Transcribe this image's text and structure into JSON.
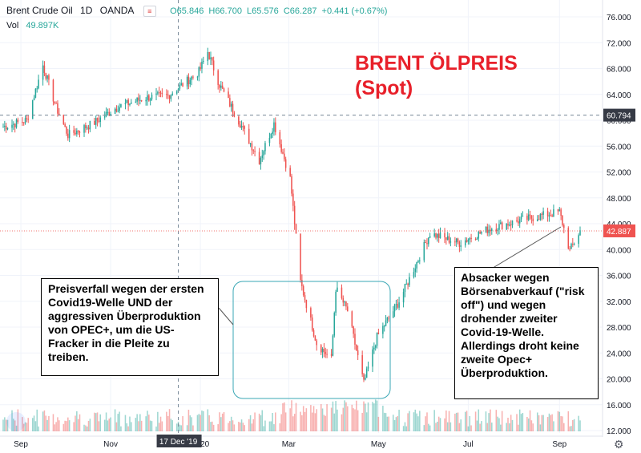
{
  "header": {
    "symbol": "Brent Crude Oil",
    "interval": "1D",
    "broker": "OANDA",
    "open": "O65.846",
    "high": "H66.700",
    "low": "L65.576",
    "close": "C66.287",
    "change": "+0.441 (+0.67%)",
    "vol_label": "Vol",
    "vol_value": "49.897K"
  },
  "annotation_title": [
    "BRENT ÖLPREIS",
    "(Spot)"
  ],
  "note_left": "Preisverfall wegen der ersten Covid19-Welle UND der aggressiven Überproduktion von OPEC+, um die US-Fracker in die Pleite zu treiben.",
  "note_right": "Absacker wegen Börsenabverkauf (\"risk off\") und wegen drohender zweiter Covid-19-Welle. Allerdings droht keine zweite Opec+ Überproduktion.",
  "colors": {
    "up": "#26a69a",
    "down": "#ef5350",
    "title_red": "#e8202a",
    "box": "#3aa7b5"
  },
  "chart_data": {
    "type": "candlestick",
    "title": "",
    "xlabel": "",
    "ylabel": "",
    "ylim": [
      12,
      77
    ],
    "y_ticks": [
      "76.000",
      "72.000",
      "68.000",
      "64.000",
      "60.000",
      "56.000",
      "52.000",
      "48.000",
      "44.000",
      "40.000",
      "36.000",
      "32.000",
      "28.000",
      "24.000",
      "20.000",
      "16.000",
      "12.000"
    ],
    "x_ticks": [
      "Sep",
      "Nov",
      "2020",
      "Mar",
      "May",
      "Jul",
      "Sep"
    ],
    "crosshair_date": "17 Dec '19",
    "crosshair_price": "60.794",
    "last_price": "42.887",
    "grid": true,
    "price_path": [
      [
        "2019-08-20",
        59.0
      ],
      [
        "2019-09-05",
        60.0
      ],
      [
        "2019-09-16",
        68.5
      ],
      [
        "2019-09-25",
        62.0
      ],
      [
        "2019-10-03",
        57.7
      ],
      [
        "2019-10-20",
        59.5
      ],
      [
        "2019-11-05",
        62.0
      ],
      [
        "2019-11-25",
        63.5
      ],
      [
        "2019-12-10",
        63.8
      ],
      [
        "2019-12-31",
        67.5
      ],
      [
        "2020-01-06",
        70.6
      ],
      [
        "2020-01-14",
        65.5
      ],
      [
        "2020-01-28",
        59.5
      ],
      [
        "2020-02-10",
        53.8
      ],
      [
        "2020-02-20",
        59.5
      ],
      [
        "2020-03-02",
        51.0
      ],
      [
        "2020-03-09",
        35.0
      ],
      [
        "2020-03-20",
        25.5
      ],
      [
        "2020-03-30",
        23.0
      ],
      [
        "2020-04-02",
        34.0
      ],
      [
        "2020-04-10",
        30.5
      ],
      [
        "2020-04-21",
        19.3
      ],
      [
        "2020-04-30",
        26.5
      ],
      [
        "2020-05-15",
        32.0
      ],
      [
        "2020-06-05",
        42.5
      ],
      [
        "2020-06-25",
        41.0
      ],
      [
        "2020-07-15",
        43.2
      ],
      [
        "2020-08-05",
        44.5
      ],
      [
        "2020-08-25",
        45.5
      ],
      [
        "2020-09-01",
        45.8
      ],
      [
        "2020-09-08",
        39.8
      ],
      [
        "2020-09-15",
        42.9
      ]
    ]
  }
}
